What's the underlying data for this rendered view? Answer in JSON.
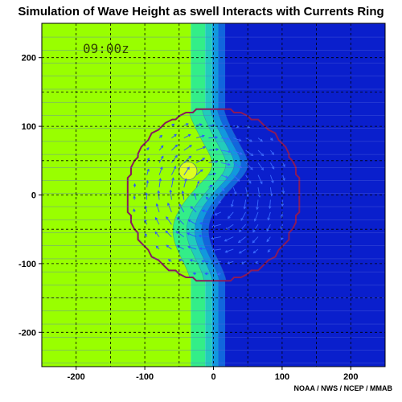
{
  "chart_data": {
    "type": "heatmap",
    "title": "Simulation of Wave Height as swell Interacts with Currents Ring",
    "time_label": "09:00z",
    "credit": "NOAA / NWS / NCEP / MMAB",
    "xlabel": "",
    "ylabel": "",
    "xlim": [
      -250,
      250
    ],
    "ylim": [
      -250,
      250
    ],
    "xticks": [
      -200,
      -100,
      0,
      100,
      200
    ],
    "yticks": [
      -200,
      -100,
      0,
      100,
      200
    ],
    "grid": true,
    "ring": {
      "center": [
        0,
        0
      ],
      "radius": 125
    },
    "field_regions": [
      {
        "name": "lowest",
        "x_from": -250,
        "x_to": -33,
        "color": "#99ff00"
      },
      {
        "name": "band-1",
        "x_from": -33,
        "x_to": -12,
        "color": "#33ee88"
      },
      {
        "name": "band-2",
        "x_from": -12,
        "x_to": -2,
        "color": "#22ccbb"
      },
      {
        "name": "band-3",
        "x_from": -2,
        "x_to": 7,
        "color": "#1199dd"
      },
      {
        "name": "band-4",
        "x_from": 7,
        "x_to": 17,
        "color": "#1166dd"
      },
      {
        "name": "highest",
        "x_from": 17,
        "x_to": 250,
        "color": "#0a1fcc"
      }
    ],
    "ring_fill_left": "#99ff00",
    "calm_spot": {
      "x": -37,
      "y": 35,
      "radius": 13,
      "color": "#ddff22"
    },
    "colors": {
      "ring_outline": "#8a1a5a",
      "grid": "#000000",
      "arrows": "#2a55ff",
      "arrows_dark": "#3a6aff"
    }
  }
}
